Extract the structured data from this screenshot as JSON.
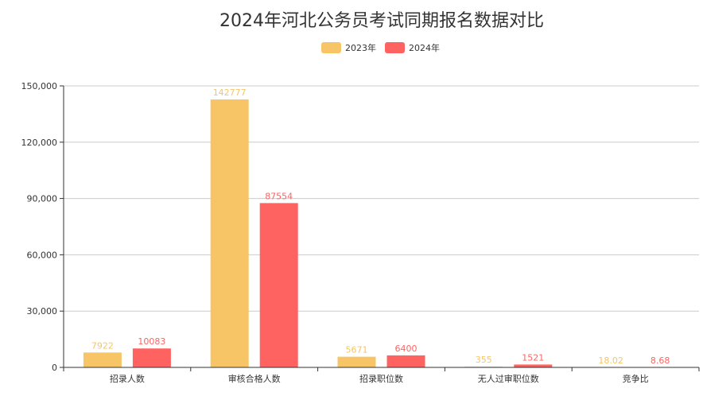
{
  "chart_data": {
    "type": "bar",
    "title": "2024年河北公务员考试同期报名数据对比",
    "categories": [
      "招录人数",
      "审核合格人数",
      "招录职位数",
      "无人过审职位数",
      "竞争比"
    ],
    "series": [
      {
        "name": "2023年",
        "color": "#F7C565",
        "values": [
          7922,
          142777,
          5671,
          355,
          18.02
        ],
        "labels": [
          "7922",
          "142777",
          "5671",
          "355",
          "18.02"
        ]
      },
      {
        "name": "2024年",
        "color": "#FF6361",
        "values": [
          10083,
          87554,
          6400,
          1521,
          8.68
        ],
        "labels": [
          "10083",
          "87554",
          "6400",
          "1521",
          "8.68"
        ]
      }
    ],
    "yticks": [
      "0",
      "30,000",
      "60,000",
      "90,000",
      "120,000",
      "150,000"
    ],
    "ylim": [
      0,
      150000
    ],
    "grid": true,
    "legend_position": "top-center"
  }
}
